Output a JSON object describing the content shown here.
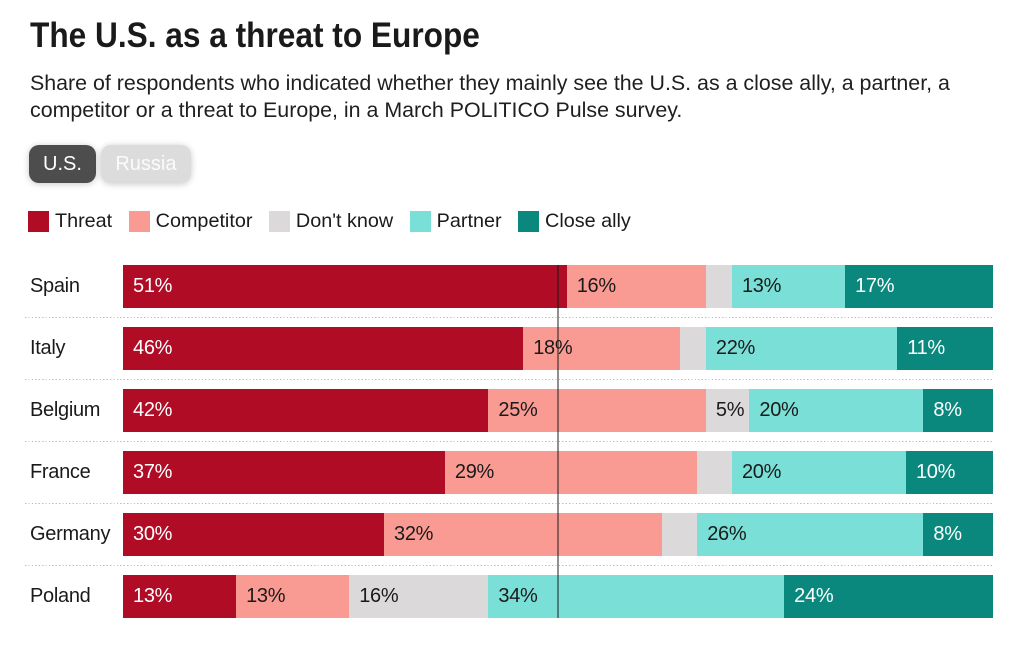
{
  "title": "The U.S. as a threat to Europe",
  "subtitle_lines": [
    "Share of respondents who indicated whether they mainly see the U.S. as a close ally, a partner, a",
    "competitor or a threat to Europe, in a March POLITICO Pulse survey."
  ],
  "toggle": {
    "options": [
      {
        "label": "U.S.",
        "selected": true
      },
      {
        "label": "Russia",
        "selected": false
      }
    ]
  },
  "colors": {
    "threat": "#b00c26",
    "competitor": "#fa9b93",
    "dont_know": "#dbd9d9",
    "partner": "#7adfd6",
    "close_ally": "#0b887e",
    "selected_button_bg": "#4d4d4d",
    "unselected_button_bg": "#dcdcdc",
    "text": "#1a1a1a",
    "grid_dots": "#bcbcbc"
  },
  "chart_data": {
    "type": "bar",
    "stacked": true,
    "orientation": "horizontal",
    "categories": [
      "Spain",
      "Italy",
      "Belgium",
      "France",
      "Germany",
      "Poland"
    ],
    "series": [
      {
        "name": "Threat",
        "color": "#b00c26",
        "text_color": "#ffffff",
        "values": [
          51,
          46,
          42,
          37,
          30,
          13
        ]
      },
      {
        "name": "Competitor",
        "color": "#fa9b93",
        "text_color": "#1a1a1a",
        "values": [
          16,
          18,
          25,
          29,
          32,
          13
        ]
      },
      {
        "name": "Don't know",
        "color": "#dbd9d9",
        "text_color": "#1a1a1a",
        "values": [
          3,
          3,
          5,
          4,
          4,
          16
        ]
      },
      {
        "name": "Partner",
        "color": "#7adfd6",
        "text_color": "#1a1a1a",
        "values": [
          13,
          22,
          20,
          20,
          26,
          34
        ]
      },
      {
        "name": "Close ally",
        "color": "#0b887e",
        "text_color": "#ffffff",
        "values": [
          17,
          11,
          8,
          10,
          8,
          24
        ]
      }
    ],
    "value_suffix": "%",
    "xlim": [
      0,
      100
    ],
    "reference_line_at": 50,
    "min_value_for_label": 5,
    "legend_position": "top",
    "grid": "dotted-row-separators"
  }
}
